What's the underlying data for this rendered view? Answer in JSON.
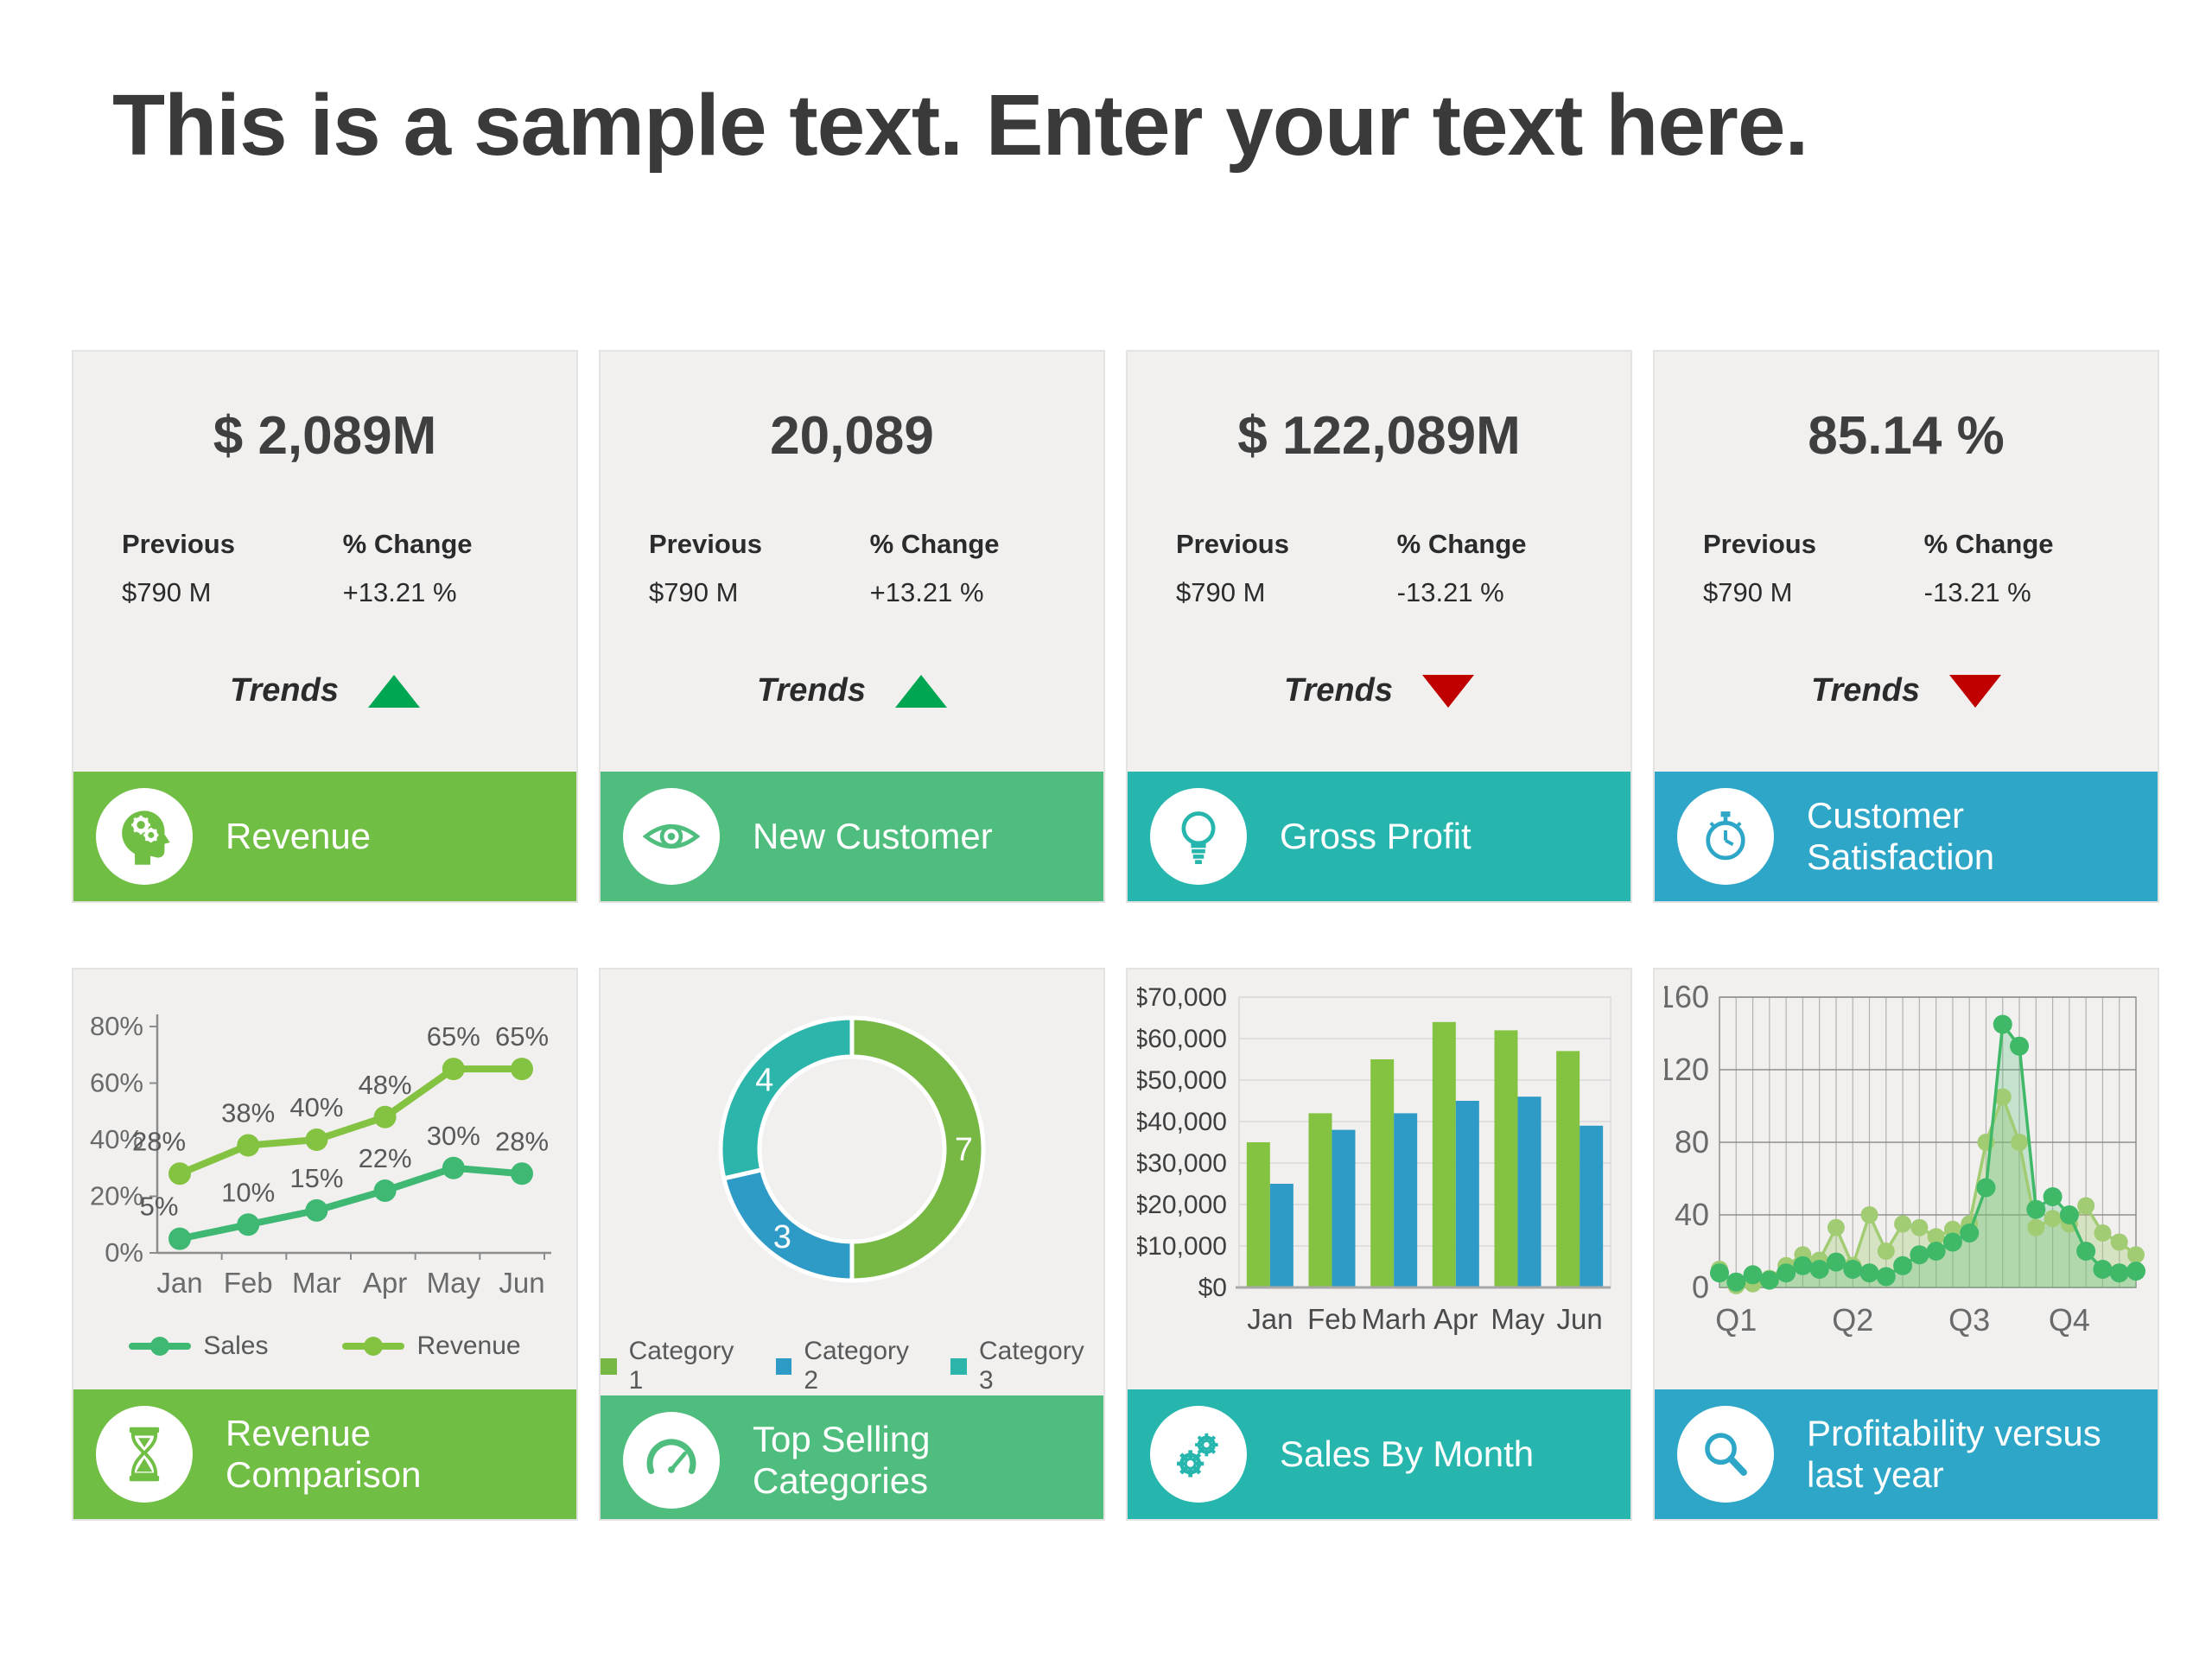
{
  "page": {
    "background": "#ffffff"
  },
  "title": "This is a sample text. Enter your text here.",
  "colors": {
    "trend_up": "#00A651",
    "trend_down": "#C00000",
    "card_background": "#F1F0EF",
    "card_border": "#E4E3E2",
    "axis_text": "#6a6a6a",
    "grid_line": "#D8D8D8",
    "green": "#71BE45",
    "emerald": "#4FBD7D",
    "teal": "#26B6AD",
    "blue": "#2EA6C8"
  },
  "kpi_cards": [
    {
      "value": "$ 2,089M",
      "previous_label": "Previous",
      "previous_value": "$790 M",
      "change_label": "% Change",
      "change_value": "+13.21 %",
      "trends_label": "Trends",
      "trend": "up",
      "footer": {
        "label": "Revenue",
        "icon": "head-gears-icon",
        "color": "#71BE45"
      }
    },
    {
      "value": "20,089",
      "previous_label": "Previous",
      "previous_value": "$790 M",
      "change_label": "% Change",
      "change_value": "+13.21 %",
      "trends_label": "Trends",
      "trend": "up",
      "footer": {
        "label": "New Customer",
        "icon": "eye-icon",
        "color": "#4FBD7D"
      }
    },
    {
      "value": "$ 122,089M",
      "previous_label": "Previous",
      "previous_value": "$790 M",
      "change_label": "% Change",
      "change_value": "-13.21 %",
      "trends_label": "Trends",
      "trend": "down",
      "footer": {
        "label": "Gross Profit",
        "icon": "lightbulb-icon",
        "color": "#26B6AD"
      }
    },
    {
      "value": "85.14 %",
      "previous_label": "Previous",
      "previous_value": "$790 M",
      "change_label": "% Change",
      "change_value": "-13.21 %",
      "trends_label": "Trends",
      "trend": "down",
      "footer": {
        "label": "Customer Satisfaction",
        "icon": "stopwatch-icon",
        "color": "#2EA6C8"
      }
    }
  ],
  "chart_cards": [
    {
      "footer": {
        "label": "Revenue Comparison",
        "icon": "hourglass-icon",
        "color": "#71BE45"
      }
    },
    {
      "footer": {
        "label": "Top Selling Categories",
        "icon": "gauge-icon",
        "color": "#4FBD7D"
      }
    },
    {
      "footer": {
        "label": "Sales By Month",
        "icon": "gears-icon",
        "color": "#26B6AD"
      }
    },
    {
      "footer": {
        "label": "Profitability versus last year",
        "icon": "magnifier-icon",
        "color": "#2EA6C8"
      }
    }
  ],
  "chart_data": [
    {
      "type": "line",
      "title": "Revenue Comparison",
      "categories": [
        "Jan",
        "Feb",
        "Mar",
        "Apr",
        "May",
        "Jun"
      ],
      "series": [
        {
          "name": "Sales",
          "color": "#3FB873",
          "values": [
            5,
            10,
            15,
            22,
            30,
            28
          ],
          "labels": [
            "5%",
            "10%",
            "15%",
            "22%",
            "30%",
            "28%"
          ]
        },
        {
          "name": "Revenue",
          "color": "#84C341",
          "values": [
            28,
            38,
            40,
            48,
            65,
            65
          ],
          "labels": [
            "28%",
            "38%",
            "40%",
            "48%",
            "65%",
            "65%"
          ]
        }
      ],
      "ylim": [
        0,
        80
      ],
      "yticks": [
        {
          "label": "0%",
          "value": 0
        },
        {
          "label": "20%",
          "value": 20
        },
        {
          "label": "40%",
          "value": 40
        },
        {
          "label": "60%",
          "value": 60
        },
        {
          "label": "80%",
          "value": 80
        }
      ],
      "legend_position": "bottom",
      "grid": false
    },
    {
      "type": "donut",
      "title": "Top Selling Categories",
      "slices": [
        {
          "label": "Category 1",
          "value": 7,
          "color": "#76B843"
        },
        {
          "label": "Category 2",
          "value": 3,
          "color": "#2E9AC6"
        },
        {
          "label": "Category 3",
          "value": 4,
          "color": "#2CB5AB"
        }
      ],
      "data_labels": [
        "7",
        "3",
        "4"
      ],
      "legend_position": "bottom"
    },
    {
      "type": "bar",
      "title": "Sales By Month",
      "categories": [
        "Jan",
        "Feb",
        "Marh",
        "Apr",
        "May",
        "Jun"
      ],
      "series": [
        {
          "color": "#84C341",
          "values": [
            35000,
            42000,
            55000,
            64000,
            62000,
            57000
          ]
        },
        {
          "color": "#2E9AC6",
          "values": [
            25000,
            38000,
            42000,
            45000,
            46000,
            39000
          ]
        }
      ],
      "ylim": [
        0,
        70000
      ],
      "yticks": [
        {
          "label": "$0",
          "value": 0
        },
        {
          "label": "$10,000",
          "value": 10000
        },
        {
          "label": "$20,000",
          "value": 20000
        },
        {
          "label": "$30,000",
          "value": 30000
        },
        {
          "label": "$40,000",
          "value": 40000
        },
        {
          "label": "$50,000",
          "value": 50000
        },
        {
          "label": "$60,000",
          "value": 60000
        },
        {
          "label": "$70,000",
          "value": 70000
        }
      ],
      "grid": true
    },
    {
      "type": "area",
      "title": "Profitability versus last year",
      "series": [
        {
          "color": "#A2CC74",
          "fill": "rgba(162,204,116,0.35)",
          "values": [
            10,
            1,
            2,
            5,
            12,
            18,
            15,
            33,
            12,
            40,
            20,
            35,
            33,
            28,
            32,
            35,
            80,
            105,
            80,
            33,
            38,
            35,
            45,
            30,
            25,
            18
          ]
        },
        {
          "color": "#3FB868",
          "fill": "rgba(63,184,104,0.25)",
          "values": [
            8,
            3,
            7,
            4,
            8,
            12,
            10,
            14,
            10,
            8,
            6,
            12,
            18,
            20,
            25,
            30,
            55,
            145,
            133,
            43,
            50,
            40,
            20,
            10,
            8,
            9
          ]
        }
      ],
      "ylim": [
        0,
        160
      ],
      "yticks": [
        {
          "label": "0",
          "value": 0
        },
        {
          "label": "40",
          "value": 40
        },
        {
          "label": "80",
          "value": 80
        },
        {
          "label": "120",
          "value": 120
        },
        {
          "label": "160",
          "value": 160
        }
      ],
      "xticks": [
        {
          "label": "Q1",
          "index": 1
        },
        {
          "label": "Q2",
          "index": 8
        },
        {
          "label": "Q3",
          "index": 15
        },
        {
          "label": "Q4",
          "index": 21
        }
      ],
      "grid": true
    }
  ]
}
